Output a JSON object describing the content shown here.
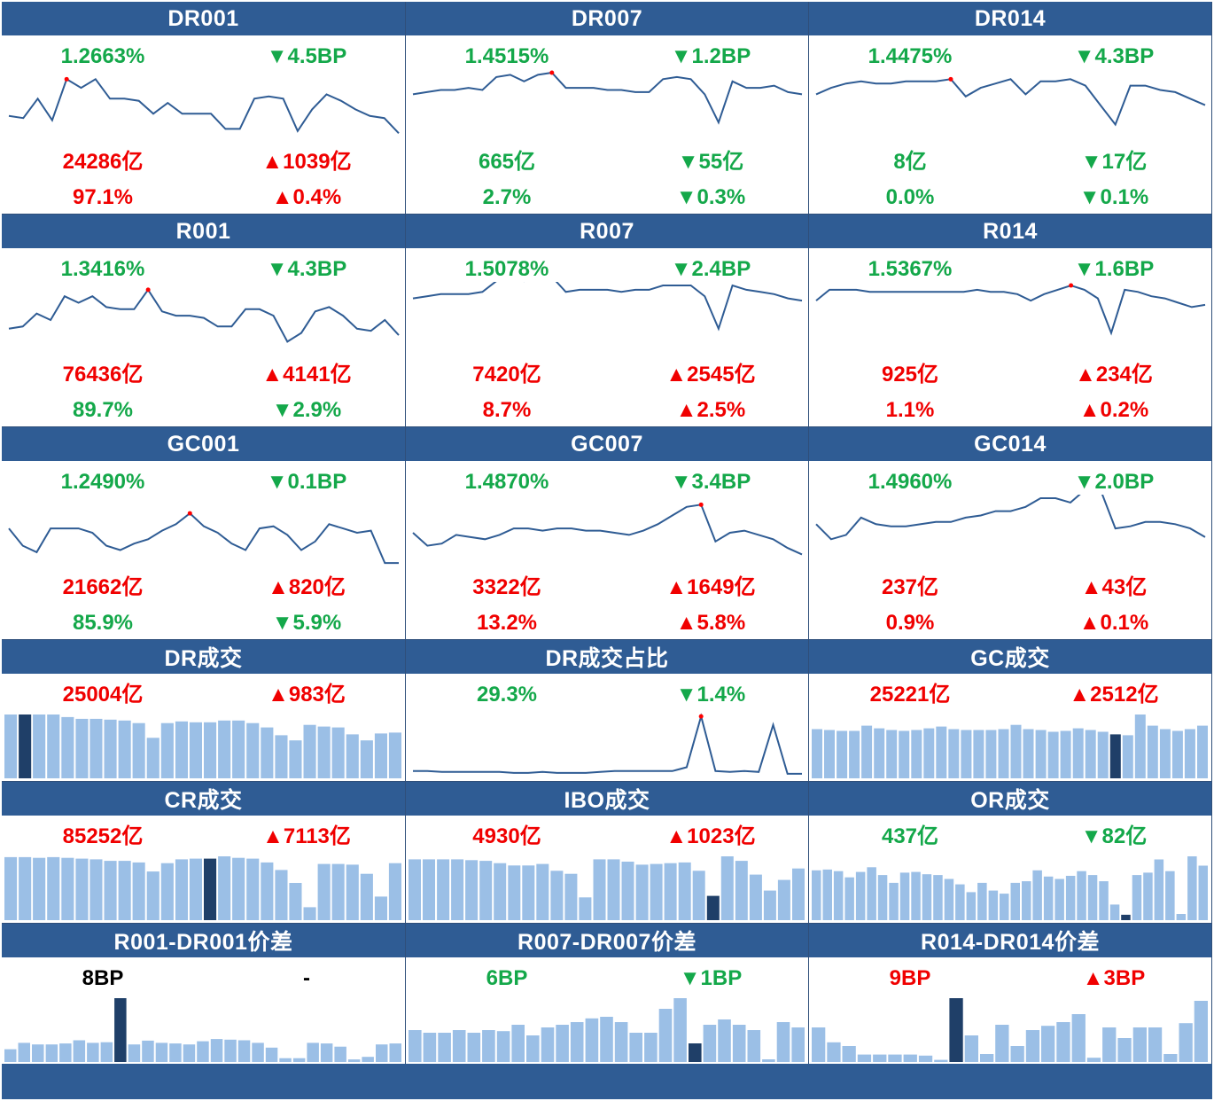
{
  "colors": {
    "header_bg": "#2f5c94",
    "up": "#f00000",
    "down": "#14a84a",
    "line": "#2f5c94",
    "bar": "#9bbfe6",
    "bar_highlight": "#1f3f68",
    "peak_dot": "#ff0000"
  },
  "rate_panels": [
    {
      "title": "DR001",
      "rate": "1.2663%",
      "rate_color": "g",
      "rate_change": "▼4.5BP",
      "rate_change_color": "g",
      "volume": "24286亿",
      "volume_color": "r",
      "volume_change": "▲1039亿",
      "volume_change_color": "r",
      "share": "97.1%",
      "share_color": "r",
      "share_change": "▲0.4%",
      "share_change_color": "r",
      "series": [
        30,
        29,
        38,
        28,
        47,
        43,
        47,
        38,
        38,
        37,
        31,
        36,
        31,
        31,
        31,
        24,
        24,
        38,
        39,
        38,
        23,
        33,
        40,
        37,
        33,
        30,
        29,
        22
      ]
    },
    {
      "title": "DR007",
      "rate": "1.4515%",
      "rate_color": "g",
      "rate_change": "▼1.2BP",
      "rate_change_color": "g",
      "volume": "665亿",
      "volume_color": "g",
      "volume_change": "▼55亿",
      "volume_change_color": "g",
      "share": "2.7%",
      "share_color": "g",
      "share_change": "▼0.3%",
      "share_change_color": "g",
      "series": [
        40,
        41,
        42,
        42,
        43,
        42,
        48,
        49,
        46,
        49,
        50,
        43,
        43,
        43,
        42,
        42,
        41,
        41,
        47,
        48,
        47,
        40,
        27,
        46,
        43,
        43,
        44,
        41,
        40
      ]
    },
    {
      "title": "DR014",
      "rate": "1.4475%",
      "rate_color": "g",
      "rate_change": "▼4.3BP",
      "rate_change_color": "g",
      "volume": "8亿",
      "volume_color": "g",
      "volume_change": "▼17亿",
      "volume_change_color": "g",
      "share": "0.0%",
      "share_color": "g",
      "share_change": "▼0.1%",
      "share_change_color": "g",
      "series": [
        40,
        43,
        45,
        46,
        45,
        45,
        46,
        46,
        46,
        47,
        39,
        43,
        45,
        47,
        40,
        46,
        46,
        47,
        44,
        35,
        26,
        44,
        44,
        42,
        41,
        38,
        35
      ]
    },
    {
      "title": "R001",
      "rate": "1.3416%",
      "rate_color": "g",
      "rate_change": "▼4.3BP",
      "rate_change_color": "g",
      "volume": "76436亿",
      "volume_color": "r",
      "volume_change": "▲4141亿",
      "volume_change_color": "r",
      "share": "89.7%",
      "share_color": "g",
      "share_change": "▼2.9%",
      "share_change_color": "g",
      "series": [
        30,
        31,
        37,
        34,
        45,
        42,
        45,
        40,
        39,
        39,
        48,
        38,
        36,
        36,
        35,
        31,
        31,
        39,
        39,
        36,
        24,
        28,
        38,
        40,
        36,
        30,
        29,
        34,
        27
      ]
    },
    {
      "title": "R007",
      "rate": "1.5078%",
      "rate_color": "g",
      "rate_change": "▼2.4BP",
      "rate_change_color": "g",
      "volume": "7420亿",
      "volume_color": "r",
      "volume_change": "▲2545亿",
      "volume_change_color": "r",
      "share": "8.7%",
      "share_color": "r",
      "share_change": "▲2.5%",
      "share_change_color": "r",
      "series": [
        44,
        45,
        46,
        46,
        46,
        47,
        52,
        53,
        52,
        53,
        54,
        47,
        48,
        48,
        48,
        47,
        48,
        48,
        50,
        50,
        50,
        45,
        30,
        50,
        48,
        47,
        46,
        44,
        43
      ]
    },
    {
      "title": "R014",
      "rate": "1.5367%",
      "rate_color": "g",
      "rate_change": "▼1.6BP",
      "rate_change_color": "g",
      "volume": "925亿",
      "volume_color": "r",
      "volume_change": "▲234亿",
      "volume_change_color": "r",
      "share": "1.1%",
      "share_color": "r",
      "share_change": "▲0.2%",
      "share_change_color": "r",
      "series": [
        43,
        48,
        48,
        48,
        47,
        47,
        47,
        47,
        47,
        47,
        47,
        47,
        48,
        47,
        47,
        46,
        43,
        46,
        48,
        50,
        48,
        44,
        28,
        48,
        47,
        45,
        44,
        42,
        40,
        41
      ]
    },
    {
      "title": "GC001",
      "rate": "1.2490%",
      "rate_color": "g",
      "rate_change": "▼0.1BP",
      "rate_change_color": "g",
      "volume": "21662亿",
      "volume_color": "r",
      "volume_change": "▲820亿",
      "volume_change_color": "r",
      "share": "85.9%",
      "share_color": "g",
      "share_change": "▼5.9%",
      "share_change_color": "g",
      "series": [
        36,
        28,
        25,
        36,
        36,
        36,
        34,
        28,
        26,
        29,
        31,
        35,
        38,
        43,
        37,
        34,
        29,
        26,
        36,
        37,
        33,
        26,
        30,
        38,
        36,
        34,
        35,
        20,
        20
      ]
    },
    {
      "title": "GC007",
      "rate": "1.4870%",
      "rate_color": "g",
      "rate_change": "▼3.4BP",
      "rate_change_color": "g",
      "volume": "3322亿",
      "volume_color": "r",
      "volume_change": "▲1649亿",
      "volume_change_color": "r",
      "share": "13.2%",
      "share_color": "r",
      "share_change": "▲5.8%",
      "share_change_color": "r",
      "series": [
        34,
        28,
        29,
        33,
        32,
        31,
        33,
        36,
        36,
        35,
        36,
        36,
        35,
        35,
        34,
        33,
        35,
        38,
        42,
        46,
        47,
        30,
        34,
        35,
        33,
        31,
        27,
        24
      ]
    },
    {
      "title": "GC014",
      "rate": "1.4960%",
      "rate_color": "g",
      "rate_change": "▼2.0BP",
      "rate_change_color": "g",
      "volume": "237亿",
      "volume_color": "r",
      "volume_change": "▲43亿",
      "volume_change_color": "r",
      "share": "0.9%",
      "share_color": "r",
      "share_change": "▲0.1%",
      "share_change_color": "r",
      "series": [
        38,
        31,
        33,
        41,
        38,
        37,
        37,
        38,
        39,
        39,
        41,
        42,
        44,
        44,
        46,
        50,
        50,
        48,
        54,
        54,
        36,
        37,
        39,
        39,
        38,
        36,
        32
      ]
    }
  ],
  "bar_panels": [
    {
      "title": "DR成交",
      "value": "25004亿",
      "value_color": "r",
      "change": "▲983亿",
      "change_color": "r",
      "highlight": 1,
      "bars": [
        74,
        74,
        74,
        74,
        71,
        69,
        69,
        68,
        67,
        64,
        47,
        64,
        66,
        65,
        65,
        67,
        67,
        64,
        59,
        50,
        44,
        62,
        60,
        59,
        51,
        44,
        52,
        53
      ]
    },
    {
      "title": "DR成交占比",
      "value": "29.3%",
      "value_color": "g",
      "change": "▼1.4%",
      "change_color": "g",
      "series": [
        12,
        12,
        11,
        11,
        11,
        11,
        11,
        10,
        10,
        11,
        10,
        10,
        10,
        11,
        12,
        12,
        12,
        12,
        12,
        16,
        70,
        12,
        11,
        12,
        11,
        61,
        9,
        9
      ]
    },
    {
      "title": "GC成交",
      "value": "25221亿",
      "value_color": "r",
      "change": "▲2512亿",
      "change_color": "r",
      "highlight": 24,
      "bars": [
        57,
        56,
        55,
        55,
        61,
        58,
        56,
        55,
        56,
        58,
        60,
        57,
        56,
        56,
        56,
        57,
        62,
        57,
        56,
        54,
        55,
        58,
        56,
        54,
        51,
        50,
        74,
        61,
        57,
        55,
        57,
        61
      ]
    },
    {
      "title": "CR成交",
      "value": "85252亿",
      "value_color": "r",
      "change": "▲7113亿",
      "change_color": "r",
      "highlight": 14,
      "bars": [
        83,
        83,
        82,
        83,
        82,
        81,
        80,
        78,
        78,
        76,
        64,
        75,
        80,
        81,
        81,
        84,
        82,
        81,
        76,
        66,
        49,
        17,
        74,
        74,
        73,
        61,
        31,
        75
      ]
    },
    {
      "title": "IBO成交",
      "value": "4930亿",
      "value_color": "r",
      "change": "▲1023亿",
      "change_color": "r",
      "highlight": 21,
      "bars": [
        80,
        80,
        80,
        80,
        79,
        78,
        75,
        72,
        72,
        74,
        65,
        61,
        30,
        80,
        80,
        77,
        73,
        74,
        75,
        76,
        65,
        32,
        84,
        78,
        60,
        39,
        53,
        68
      ]
    },
    {
      "title": "OR成交",
      "value": "437亿",
      "value_color": "g",
      "change": "▼82亿",
      "change_color": "g",
      "highlight": 28,
      "bars": [
        64,
        65,
        63,
        55,
        62,
        68,
        58,
        48,
        61,
        62,
        59,
        58,
        53,
        46,
        36,
        48,
        38,
        34,
        48,
        50,
        64,
        56,
        53,
        57,
        63,
        58,
        50,
        20,
        7,
        58,
        61,
        78,
        63,
        8,
        82,
        70
      ]
    },
    {
      "title": "R001-DR001价差",
      "value": "8BP",
      "value_color": "k",
      "change": "-",
      "change_color": "k",
      "highlight": 8,
      "bars": [
        40,
        60,
        55,
        55,
        58,
        68,
        60,
        62,
        200,
        55,
        67,
        60,
        58,
        55,
        65,
        72,
        70,
        68,
        60,
        45,
        12,
        12,
        60,
        58,
        48,
        8,
        16,
        55,
        58
      ]
    },
    {
      "title": "R007-DR007价差",
      "value": "6BP",
      "value_color": "g",
      "change": "▼1BP",
      "change_color": "g",
      "highlight": 19,
      "bars": [
        60,
        55,
        55,
        60,
        55,
        60,
        58,
        70,
        50,
        65,
        70,
        75,
        82,
        85,
        75,
        55,
        55,
        100,
        120,
        35,
        70,
        80,
        70,
        60,
        5,
        75,
        65
      ]
    },
    {
      "title": "R014-DR014价差",
      "value": "9BP",
      "value_color": "r",
      "change": "▲3BP",
      "change_color": "r",
      "highlight": 9,
      "bars": [
        65,
        37,
        30,
        14,
        14,
        14,
        14,
        12,
        4,
        120,
        50,
        15,
        70,
        30,
        60,
        68,
        75,
        90,
        8,
        65,
        45,
        65,
        65,
        15,
        73,
        115
      ]
    }
  ]
}
